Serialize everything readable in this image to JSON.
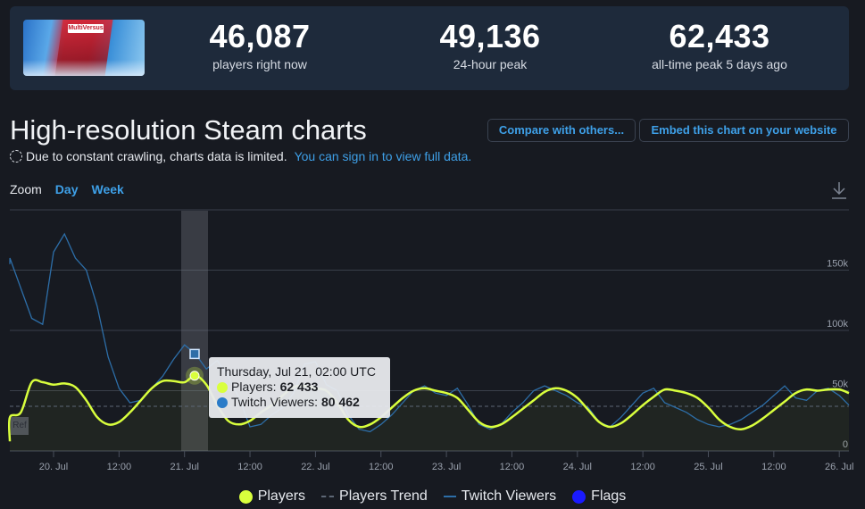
{
  "stats": {
    "game_logo_text": "MultiVersus",
    "items": [
      {
        "value": "46,087",
        "label": "players right now"
      },
      {
        "value": "49,136",
        "label": "24-hour peak"
      },
      {
        "value": "62,433",
        "label": "all-time peak 5 days ago"
      }
    ]
  },
  "header": {
    "title": "High-resolution Steam charts",
    "notice": "Due to constant crawling, charts data is limited.",
    "signin_link": "You can sign in to view full data.",
    "compare_button": "Compare with others...",
    "embed_button": "Embed this chart on your website"
  },
  "zoom": {
    "label": "Zoom",
    "options": [
      "Day",
      "Week"
    ]
  },
  "icons": {
    "download": "download-icon",
    "dashed_circle": "dashed-circle-icon"
  },
  "colors": {
    "background": "#171a21",
    "stats_panel": "#1e2a3b",
    "players": "#d9ff3d",
    "twitch": "#2d6ea8",
    "flags": "#1a1aff",
    "link": "#3ea0e8",
    "grid": "#3a3f4a"
  },
  "tooltip": {
    "title": "Thursday, Jul 21, 02:00 UTC",
    "players_label": "Players: ",
    "players_value": "62 433",
    "twitch_label": "Twitch Viewers: ",
    "twitch_value": "80 462"
  },
  "ref_label": "Ref",
  "chart_data": {
    "type": "line",
    "title": "High-resolution Steam charts",
    "xlabel": "",
    "ylabel": "",
    "ylim": [
      0,
      200000
    ],
    "y_ticks": [
      "0",
      "50k",
      "100k",
      "150k"
    ],
    "x_ticks": [
      "20. Jul",
      "12:00",
      "21. Jul",
      "12:00",
      "22. Jul",
      "12:00",
      "23. Jul",
      "12:00",
      "24. Jul",
      "12:00",
      "25. Jul",
      "12:00",
      "26. Jul"
    ],
    "grid": true,
    "legend_position": "bottom",
    "legend": [
      "Players",
      "Players Trend",
      "Twitch Viewers",
      "Flags"
    ],
    "highlight": {
      "x": "Jul 21, 02:00 UTC",
      "players": 62433,
      "twitch_viewers": 80462
    },
    "x_hours_from_jul20_00": [
      -10,
      -8,
      -6,
      -4,
      -2,
      0,
      2,
      4,
      6,
      8,
      10,
      12,
      14,
      16,
      18,
      20,
      22,
      24,
      26,
      28,
      30,
      32,
      34,
      36,
      38,
      40,
      42,
      44,
      46,
      48,
      50,
      52,
      54,
      56,
      58,
      60,
      62,
      64,
      66,
      68,
      70,
      72,
      74,
      76,
      78,
      80,
      82,
      84,
      86,
      88,
      90,
      92,
      94,
      96,
      98,
      100,
      102,
      104,
      106,
      108,
      110,
      112,
      114,
      116,
      118,
      120,
      122,
      124,
      126,
      128,
      130,
      132,
      134,
      136,
      138,
      140,
      142,
      144,
      146
    ],
    "series": [
      {
        "name": "Players",
        "values": [
          8000,
          28000,
          32000,
          57000,
          57000,
          55000,
          56000,
          53000,
          42000,
          28000,
          22000,
          24000,
          32000,
          42000,
          52000,
          58000,
          58000,
          57000,
          62433,
          55000,
          38000,
          25000,
          22000,
          25000,
          32000,
          38000,
          46000,
          53000,
          54000,
          52000,
          50000,
          40000,
          26000,
          20000,
          22000,
          28000,
          36000,
          44000,
          50000,
          52000,
          50000,
          48000,
          44000,
          34000,
          24000,
          20000,
          22000,
          28000,
          35000,
          42000,
          49000,
          52000,
          50000,
          44000,
          34000,
          24000,
          20000,
          23000,
          30000,
          38000,
          45000,
          51000,
          50000,
          48000,
          44000,
          36000,
          26000,
          20000,
          18000,
          21000,
          27000,
          34000,
          41000,
          48000,
          51000,
          50000,
          51000,
          51000,
          48000
        ]
      },
      {
        "name": "Players Trend",
        "values_constant_approx": 37000
      },
      {
        "name": "Twitch Viewers",
        "values": [
          155000,
          160000,
          135000,
          110000,
          105000,
          165000,
          180000,
          160000,
          150000,
          120000,
          78000,
          52000,
          40000,
          42000,
          52000,
          62000,
          76000,
          88000,
          80462,
          68000,
          75000,
          62000,
          44000,
          20000,
          22000,
          30000,
          36000,
          48000,
          72000,
          74000,
          55000,
          50000,
          30000,
          18000,
          16000,
          22000,
          30000,
          40000,
          50000,
          54000,
          48000,
          46000,
          52000,
          38000,
          22000,
          18000,
          22000,
          32000,
          40000,
          50000,
          54000,
          50000,
          46000,
          40000,
          36000,
          24000,
          20000,
          28000,
          38000,
          48000,
          52000,
          40000,
          36000,
          32000,
          26000,
          22000,
          20000,
          22000,
          26000,
          32000,
          38000,
          46000,
          54000,
          44000,
          42000,
          50000,
          52000,
          46000,
          38000
        ]
      },
      {
        "name": "Flags",
        "values": []
      }
    ]
  }
}
